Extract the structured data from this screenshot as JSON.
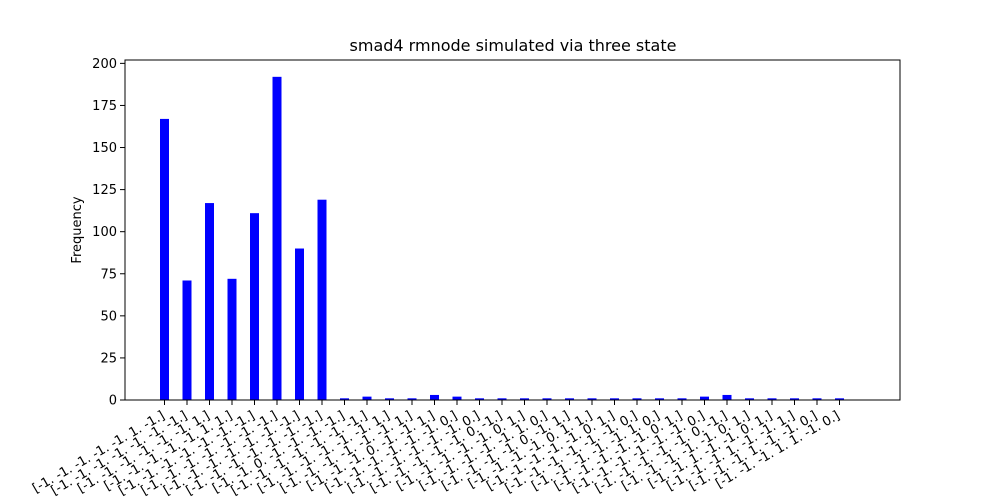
{
  "chart_data": {
    "type": "bar",
    "title": "smad4 rmnode simulated via three state",
    "xlabel": "",
    "ylabel": "Frequency",
    "ylim": [
      0,
      202
    ],
    "yticks": [
      0,
      25,
      50,
      75,
      100,
      125,
      150,
      175,
      200
    ],
    "grid": false,
    "bar_color": "#0000ff",
    "categories": [
      "[-1. -1. -1. -1. -1.  1. -1.]",
      "[-1. -1. -1. -1. -1. -1. -1.]",
      "[-1. -1. -1. -1. -1. -1.  1.]",
      "[-1. -1. -1. -1. -1.  1.  1.]",
      "[-1. -1. -1. -1. -1. -1. -1.]",
      "[-1. -1. -1. -1. -1. -1. -1.]",
      "[-1. -1. -1. -1. -1. -1. -1.]",
      "[-1. -1. -1. -1. -1. -1. -1.]",
      "[-1. -1.  0. -1. -1. -1. -1.]",
      "[-1. -1. -1. -1. -1. -1. -1.]",
      "[-1. -1. -1. -1. -1. -1.  1.]",
      "[-1. -1. -1. -1. -1. -1.  1.]",
      "[-1. -1. -1.  0. -1. -1.  1.]",
      "[-1. -1. -1. -1. -1. -1.  0.]",
      "[-1. -1. -1. -1. -1. -1.  0.]",
      "[-1. -1. -1. -1. -1.  0. -1.]",
      "[-1. -1. -1. -1. -1.  0.  1.]",
      "[-1. -1. -1. -1. -1.  1.  0.]",
      "[-1. -1. -1. -1.  0. -1.  1.]",
      "[-1. -1. -1. -1.  0.  1.  1.]",
      "[-1. -1. -1. -1. -1.  0.  1.]",
      "[-1. -1. -1. -1. -1. -1.  0.]",
      "[-1. -1. -1. -1. -1.  1.  0.]",
      "[-1. -1. -1. -1. -1.  0.  1.]",
      "[-1. -1. -1. -1. -1. -1.  0.]",
      "[-1. -1. -1. -1. -1.  0. -1.]",
      "[-1. -1. -1. -1. -1.  0.  1.]",
      "[-1. -1.  1. -1. -1.  0.  1.]",
      "[-1. -1. -1.  1. -1. -1.  1.]",
      "[-1. -1. -1.  1. -1. -1.  0.]",
      "[-1. -1. -1.  1.  1. -1.  0.]"
    ],
    "values": [
      167,
      71,
      117,
      72,
      111,
      192,
      90,
      119,
      1,
      2,
      1,
      1,
      3,
      2,
      1,
      1,
      1,
      1,
      1,
      1,
      1,
      1,
      1,
      1,
      2,
      3,
      1,
      1,
      1,
      1,
      1
    ]
  }
}
